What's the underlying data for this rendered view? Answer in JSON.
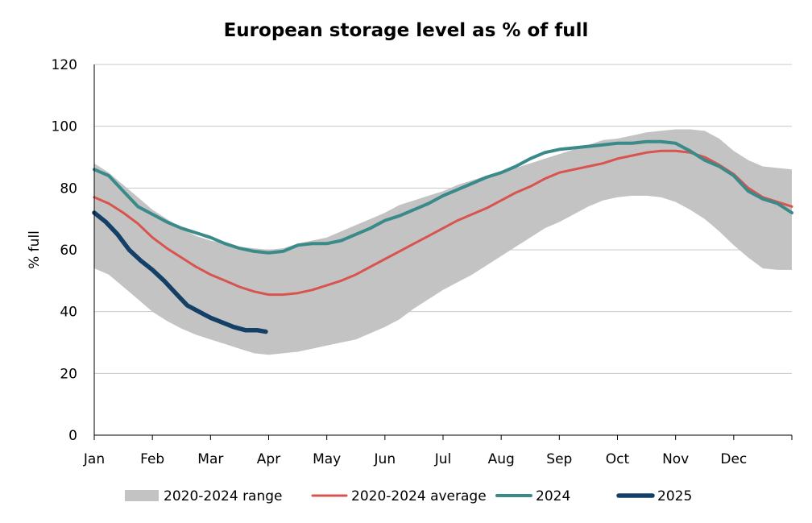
{
  "chart_data": {
    "type": "area",
    "title": "European storage level as % of full",
    "xlabel": "",
    "ylabel": "% full",
    "ylim": [
      0,
      120
    ],
    "xlim": [
      0,
      12
    ],
    "yticks": [
      0,
      20,
      40,
      60,
      80,
      100,
      120
    ],
    "grid": true,
    "legend_position": "bottom",
    "x_unit": "month",
    "categories": [
      "Jan",
      "Feb",
      "Mar",
      "Apr",
      "May",
      "Jun",
      "Jul",
      "Aug",
      "Sep",
      "Oct",
      "Nov",
      "Dec"
    ],
    "band": {
      "name": "2020-2024 range",
      "color": "#c3c3c3",
      "x": [
        0,
        0.25,
        0.5,
        0.75,
        1,
        1.25,
        1.5,
        1.75,
        2,
        2.25,
        2.5,
        2.75,
        3,
        3.25,
        3.5,
        3.75,
        4,
        4.25,
        4.5,
        4.75,
        5,
        5.25,
        5.5,
        5.75,
        6,
        6.25,
        6.5,
        6.75,
        7,
        7.25,
        7.5,
        7.75,
        8,
        8.25,
        8.5,
        8.75,
        9,
        9.25,
        9.5,
        9.75,
        10,
        10.25,
        10.5,
        10.75,
        11,
        11.25,
        11.5,
        11.75,
        12
      ],
      "upper": [
        88,
        85,
        81,
        77,
        73,
        70,
        67,
        64.5,
        63,
        62,
        61,
        60.5,
        60,
        60.5,
        62,
        63,
        64,
        66,
        68,
        70,
        72,
        74.5,
        76,
        77.5,
        79,
        81,
        82.5,
        84,
        85,
        86.5,
        88,
        89.5,
        91,
        92.5,
        94,
        95.5,
        96,
        97,
        98,
        98.5,
        99,
        99,
        98.5,
        96,
        92,
        89,
        87,
        86.5,
        86
      ],
      "lower": [
        54,
        52,
        48,
        44,
        40,
        37,
        34.5,
        32.5,
        31,
        29.5,
        28,
        26.5,
        26,
        26.5,
        27,
        28,
        29,
        30,
        31,
        33,
        35,
        37.5,
        41,
        44,
        47,
        49.5,
        52,
        55,
        58,
        61,
        64,
        67,
        69,
        71.5,
        74,
        76,
        77,
        77.5,
        77.5,
        77,
        75.5,
        73,
        70,
        66,
        61.5,
        57.5,
        54,
        53.5,
        53.5
      ]
    },
    "series": [
      {
        "name": "2020-2024 average",
        "color": "#d9534f",
        "x": [
          0,
          0.25,
          0.5,
          0.75,
          1,
          1.25,
          1.5,
          1.75,
          2,
          2.25,
          2.5,
          2.75,
          3,
          3.25,
          3.5,
          3.75,
          4,
          4.25,
          4.5,
          4.75,
          5,
          5.25,
          5.5,
          5.75,
          6,
          6.25,
          6.5,
          6.75,
          7,
          7.25,
          7.5,
          7.75,
          8,
          8.25,
          8.5,
          8.75,
          9,
          9.25,
          9.5,
          9.75,
          10,
          10.25,
          10.5,
          10.75,
          11,
          11.25,
          11.5,
          11.75,
          12
        ],
        "values": [
          77,
          75,
          72,
          68.5,
          64,
          60.5,
          57.5,
          54.5,
          52,
          50,
          48,
          46.5,
          45.5,
          45.5,
          46,
          47,
          48.5,
          50,
          52,
          54.5,
          57,
          59.5,
          62,
          64.5,
          67,
          69.5,
          71.5,
          73.5,
          76,
          78.5,
          80.5,
          83,
          85,
          86,
          87,
          88,
          89.5,
          90.5,
          91.5,
          92,
          92,
          91.5,
          90,
          87.5,
          84.5,
          80,
          77,
          75.5,
          74
        ]
      },
      {
        "name": "2024",
        "color": "#3a8a8a",
        "x": [
          0,
          0.25,
          0.5,
          0.75,
          1,
          1.25,
          1.5,
          1.75,
          2,
          2.25,
          2.5,
          2.75,
          3,
          3.25,
          3.5,
          3.75,
          4,
          4.25,
          4.5,
          4.75,
          5,
          5.25,
          5.5,
          5.75,
          6,
          6.25,
          6.5,
          6.75,
          7,
          7.25,
          7.5,
          7.75,
          8,
          8.25,
          8.5,
          8.75,
          9,
          9.25,
          9.5,
          9.75,
          10,
          10.25,
          10.5,
          10.75,
          11,
          11.25,
          11.5,
          11.75,
          12
        ],
        "values": [
          86,
          84,
          79,
          74,
          71.5,
          69,
          67,
          65.5,
          64,
          62,
          60.5,
          59.5,
          59,
          59.5,
          61.5,
          62,
          62,
          63,
          65,
          67,
          69.5,
          71,
          73,
          75,
          77.5,
          79.5,
          81.5,
          83.5,
          85,
          87,
          89.5,
          91.5,
          92.5,
          93,
          93.5,
          94,
          94.5,
          94.5,
          95,
          95,
          94.5,
          92,
          89,
          87,
          84,
          79,
          76.5,
          75,
          72
        ]
      },
      {
        "name": "2025",
        "color": "#143f66",
        "x": [
          0,
          0.2,
          0.4,
          0.6,
          0.8,
          1,
          1.2,
          1.4,
          1.6,
          1.8,
          2,
          2.2,
          2.4,
          2.6,
          2.8,
          2.95
        ],
        "values": [
          72,
          69,
          65,
          60,
          56.5,
          53.5,
          50,
          46,
          42,
          40,
          38,
          36.5,
          35,
          34,
          34,
          33.5
        ]
      }
    ]
  }
}
